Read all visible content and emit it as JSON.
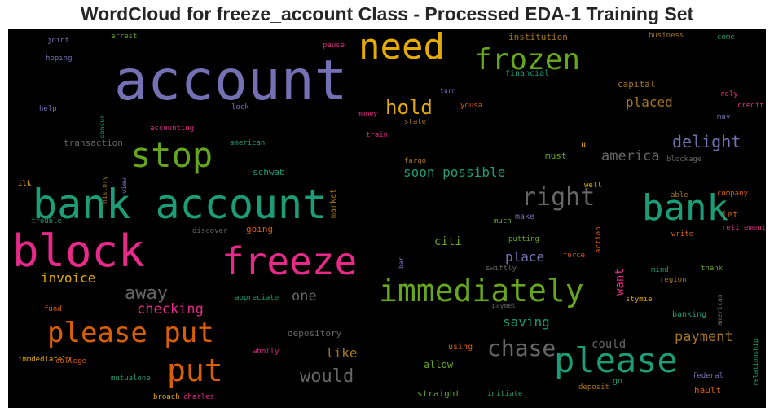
{
  "title": "WordCloud for freeze_account Class - Processed EDA-1 Training Set",
  "chart_data": {
    "type": "wordcloud",
    "title": "WordCloud for freeze_account Class - Processed EDA-1 Training Set",
    "background": "#000000",
    "palette": [
      "#7570b3",
      "#e6ab02",
      "#66a61e",
      "#1b9e77",
      "#e7298a",
      "#d95f02",
      "#a6761d",
      "#666666"
    ],
    "words": [
      {
        "text": "account",
        "color": "#7570b3"
      },
      {
        "text": "need",
        "color": "#e6ab02"
      },
      {
        "text": "frozen",
        "color": "#66a61e"
      },
      {
        "text": "bank account",
        "color": "#1b9e77"
      },
      {
        "text": "block",
        "color": "#e7298a"
      },
      {
        "text": "freeze",
        "color": "#e7298a"
      },
      {
        "text": "stop",
        "color": "#66a61e"
      },
      {
        "text": "immediately",
        "color": "#66a61e"
      },
      {
        "text": "bank",
        "color": "#1b9e77"
      },
      {
        "text": "please",
        "color": "#1b9e77"
      },
      {
        "text": "please put",
        "color": "#d95f02"
      },
      {
        "text": "put",
        "color": "#d95f02"
      },
      {
        "text": "right",
        "color": "#666666"
      },
      {
        "text": "hold",
        "color": "#e6ab02"
      },
      {
        "text": "chase",
        "color": "#666666"
      },
      {
        "text": "delight",
        "color": "#7570b3"
      },
      {
        "text": "placed",
        "color": "#a6761d"
      },
      {
        "text": "america",
        "color": "#666666"
      },
      {
        "text": "soon possible",
        "color": "#1b9e77"
      },
      {
        "text": "would",
        "color": "#666666"
      },
      {
        "text": "payment",
        "color": "#a6761d"
      },
      {
        "text": "away",
        "color": "#666666"
      },
      {
        "text": "checking",
        "color": "#e7298a"
      },
      {
        "text": "invoice",
        "color": "#e6ab02"
      },
      {
        "text": "one",
        "color": "#666666"
      },
      {
        "text": "place",
        "color": "#7570b3"
      },
      {
        "text": "saving",
        "color": "#1b9e77"
      },
      {
        "text": "like",
        "color": "#a6761d"
      },
      {
        "text": "citi",
        "color": "#66a61e"
      },
      {
        "text": "want",
        "color": "#e7298a"
      },
      {
        "text": "could",
        "color": "#666666"
      },
      {
        "text": "institution",
        "color": "#a6761d"
      },
      {
        "text": "financial",
        "color": "#1b9e77"
      },
      {
        "text": "capital",
        "color": "#a6761d"
      },
      {
        "text": "business",
        "color": "#a6761d"
      },
      {
        "text": "come",
        "color": "#1b9e77"
      },
      {
        "text": "rely",
        "color": "#e7298a"
      },
      {
        "text": "credit",
        "color": "#e7298a"
      },
      {
        "text": "may",
        "color": "#7570b3"
      },
      {
        "text": "u",
        "color": "#e6ab02"
      },
      {
        "text": "must",
        "color": "#66a61e"
      },
      {
        "text": "blockage",
        "color": "#666666"
      },
      {
        "text": "able",
        "color": "#a6761d"
      },
      {
        "text": "company",
        "color": "#d95f02"
      },
      {
        "text": "let",
        "color": "#d95f02"
      },
      {
        "text": "retirement",
        "color": "#e7298a"
      },
      {
        "text": "write",
        "color": "#d95f02"
      },
      {
        "text": "well",
        "color": "#e6ab02"
      },
      {
        "text": "make",
        "color": "#7570b3"
      },
      {
        "text": "much",
        "color": "#66a61e"
      },
      {
        "text": "putting",
        "color": "#66a61e"
      },
      {
        "text": "action",
        "color": "#d95f02"
      },
      {
        "text": "force",
        "color": "#d95f02"
      },
      {
        "text": "mind",
        "color": "#1b9e77"
      },
      {
        "text": "thank",
        "color": "#66a61e"
      },
      {
        "text": "region",
        "color": "#a6761d"
      },
      {
        "text": "american",
        "color": "#666666"
      },
      {
        "text": "stymie",
        "color": "#e6ab02"
      },
      {
        "text": "banking",
        "color": "#1b9e77"
      },
      {
        "text": "relationship",
        "color": "#1b9e77"
      },
      {
        "text": "go",
        "color": "#1b9e77"
      },
      {
        "text": "federal",
        "color": "#7570b3"
      },
      {
        "text": "hault",
        "color": "#d95f02"
      },
      {
        "text": "deposit",
        "color": "#a6761d"
      },
      {
        "text": "initiate",
        "color": "#1b9e77"
      },
      {
        "text": "straight",
        "color": "#66a61e"
      },
      {
        "text": "allow",
        "color": "#66a61e"
      },
      {
        "text": "using",
        "color": "#d95f02"
      },
      {
        "text": "swiftly",
        "color": "#666666"
      },
      {
        "text": "paymet",
        "color": "#666666"
      },
      {
        "text": "bar",
        "color": "#7570b3"
      },
      {
        "text": "fargo",
        "color": "#a6761d"
      },
      {
        "text": "train",
        "color": "#e7298a"
      },
      {
        "text": "state",
        "color": "#a6761d"
      },
      {
        "text": "money",
        "color": "#e7298a"
      },
      {
        "text": "yousa",
        "color": "#d95f02"
      },
      {
        "text": "turn",
        "color": "#7570b3"
      },
      {
        "text": "pause",
        "color": "#e7298a"
      },
      {
        "text": "market",
        "color": "#a6761d"
      },
      {
        "text": "joint",
        "color": "#7570b3"
      },
      {
        "text": "arrest",
        "color": "#66a61e"
      },
      {
        "text": "hoping",
        "color": "#7570b3"
      },
      {
        "text": "help",
        "color": "#7570b3"
      },
      {
        "text": "concur",
        "color": "#1b9e77"
      },
      {
        "text": "lock",
        "color": "#7570b3"
      },
      {
        "text": "accounting",
        "color": "#e7298a"
      },
      {
        "text": "transaction",
        "color": "#666666"
      },
      {
        "text": "american",
        "color": "#1b9e77"
      },
      {
        "text": "view",
        "color": "#7570b3"
      },
      {
        "text": "history",
        "color": "#a6761d"
      },
      {
        "text": "schwab",
        "color": "#1b9e77"
      },
      {
        "text": "ilk",
        "color": "#e6ab02"
      },
      {
        "text": "trouble",
        "color": "#1b9e77"
      },
      {
        "text": "discover",
        "color": "#666666"
      },
      {
        "text": "going",
        "color": "#d95f02"
      },
      {
        "text": "appreciate",
        "color": "#1b9e77"
      },
      {
        "text": "fund",
        "color": "#d95f02"
      },
      {
        "text": "depository",
        "color": "#666666"
      },
      {
        "text": "wholly",
        "color": "#e7298a"
      },
      {
        "text": "immdediately",
        "color": "#e6ab02"
      },
      {
        "text": "college",
        "color": "#d95f02"
      },
      {
        "text": "mutualone",
        "color": "#1b9e77"
      },
      {
        "text": "broach",
        "color": "#e6ab02"
      },
      {
        "text": "charles",
        "color": "#e7298a"
      }
    ]
  }
}
